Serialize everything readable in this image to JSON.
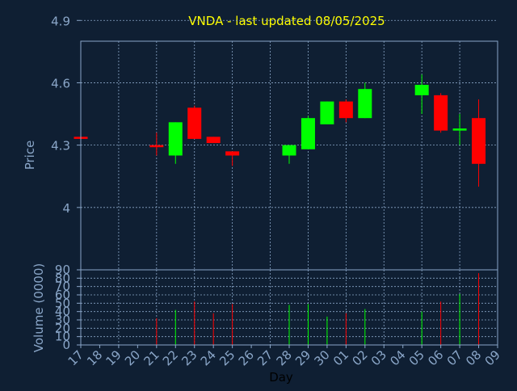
{
  "chart_data": [
    {
      "type": "candlestick",
      "title": "VNDA - last updated 08/05/2025",
      "ylabel": "Price",
      "xlabel": "Day",
      "ylim": [
        3.7,
        4.8
      ],
      "yticks": [
        4,
        4.3,
        4.6,
        4.9
      ],
      "ytick_labels": [
        "4",
        "4.3",
        "4.6",
        "4.9"
      ],
      "grid": true,
      "x_ticks": [
        "17",
        "18",
        "19",
        "20",
        "21",
        "22",
        "23",
        "24",
        "25",
        "26",
        "27",
        "28",
        "29",
        "30",
        "01",
        "02",
        "03",
        "04",
        "05",
        "06",
        "07",
        "08",
        "09"
      ],
      "colors": {
        "up": "#00ff00",
        "down": "#ff0000",
        "title": "#ffff00",
        "axis_text": "#8aa6c8",
        "frame": "#8aa6c8",
        "grid": "#8aa6c8",
        "background": "#0f1f33"
      },
      "candles": [
        {
          "day": "17",
          "open": 4.34,
          "close": 4.33,
          "high": 4.34,
          "low": 4.33
        },
        {
          "day": "21",
          "open": 4.3,
          "close": 4.29,
          "high": 4.36,
          "low": 4.25
        },
        {
          "day": "22",
          "open": 4.25,
          "close": 4.41,
          "high": 4.41,
          "low": 4.21
        },
        {
          "day": "23",
          "open": 4.48,
          "close": 4.33,
          "high": 4.49,
          "low": 4.33
        },
        {
          "day": "24",
          "open": 4.34,
          "close": 4.31,
          "high": 4.34,
          "low": 4.31
        },
        {
          "day": "25",
          "open": 4.27,
          "close": 4.25,
          "high": 4.27,
          "low": 4.2
        },
        {
          "day": "28",
          "open": 4.25,
          "close": 4.3,
          "high": 4.3,
          "low": 4.21
        },
        {
          "day": "29",
          "open": 4.28,
          "close": 4.43,
          "high": 4.44,
          "low": 4.28
        },
        {
          "day": "30",
          "open": 4.4,
          "close": 4.51,
          "high": 4.51,
          "low": 4.4
        },
        {
          "day": "01",
          "open": 4.51,
          "close": 4.43,
          "high": 4.52,
          "low": 4.41
        },
        {
          "day": "02",
          "open": 4.43,
          "close": 4.57,
          "high": 4.6,
          "low": 4.43
        },
        {
          "day": "05",
          "open": 4.54,
          "close": 4.59,
          "high": 4.64,
          "low": 4.45
        },
        {
          "day": "06",
          "open": 4.54,
          "close": 4.37,
          "high": 4.55,
          "low": 4.36
        },
        {
          "day": "07",
          "open": 4.37,
          "close": 4.38,
          "high": 4.45,
          "low": 4.3
        },
        {
          "day": "08",
          "open": 4.43,
          "close": 4.21,
          "high": 4.52,
          "low": 4.1
        }
      ]
    },
    {
      "type": "bar",
      "ylabel": "Volume (0000)",
      "ylim": [
        0,
        90
      ],
      "yticks": [
        0,
        10,
        20,
        30,
        40,
        50,
        60,
        70,
        80,
        90
      ],
      "ytick_labels": [
        "0",
        "10",
        "20",
        "30",
        "40",
        "50",
        "60",
        "70",
        "80",
        "90"
      ],
      "grid": true,
      "bars": [
        {
          "day": "21",
          "value": 32,
          "color": "#ff0000"
        },
        {
          "day": "22",
          "value": 42,
          "color": "#00ff00"
        },
        {
          "day": "23",
          "value": 52,
          "color": "#ff0000"
        },
        {
          "day": "24",
          "value": 38,
          "color": "#ff0000"
        },
        {
          "day": "25",
          "value": 49,
          "color": "#ff0000"
        },
        {
          "day": "28",
          "value": 48,
          "color": "#00ff00"
        },
        {
          "day": "29",
          "value": 49,
          "color": "#00ff00"
        },
        {
          "day": "30",
          "value": 34,
          "color": "#00ff00"
        },
        {
          "day": "01",
          "value": 38,
          "color": "#ff0000"
        },
        {
          "day": "02",
          "value": 43,
          "color": "#00ff00"
        },
        {
          "day": "05",
          "value": 40,
          "color": "#00ff00"
        },
        {
          "day": "06",
          "value": 52,
          "color": "#ff0000"
        },
        {
          "day": "07",
          "value": 61,
          "color": "#00ff00"
        },
        {
          "day": "08",
          "value": 86,
          "color": "#ff0000"
        }
      ]
    }
  ]
}
